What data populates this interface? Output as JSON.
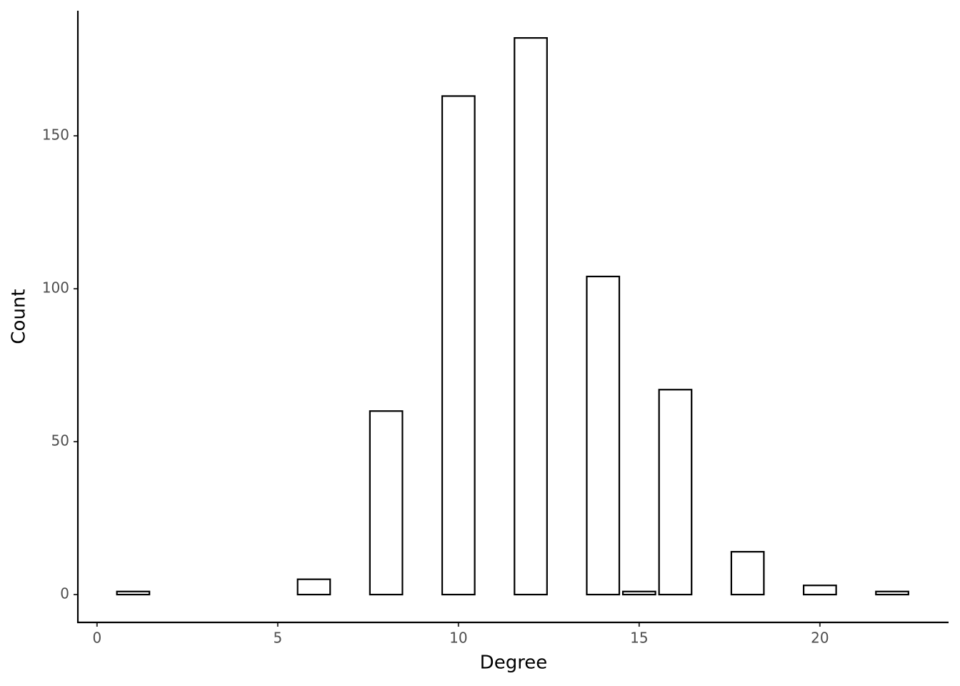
{
  "chart_data": {
    "type": "bar",
    "x_label": "Degree",
    "y_label": "Count",
    "x": [
      1,
      6,
      8,
      10,
      12,
      14,
      15,
      16,
      18,
      20,
      22
    ],
    "values": [
      1,
      5,
      60,
      163,
      182,
      104,
      1,
      67,
      14,
      3,
      1
    ],
    "color": "#ffffff",
    "edge_color": "#000000",
    "xlim": [
      -0.53,
      23.56
    ],
    "ylim": [
      -9.1,
      190.9
    ],
    "xticks": [
      0,
      5,
      10,
      15,
      20
    ],
    "yticks": [
      0,
      50,
      100,
      150
    ],
    "grid": false
  }
}
